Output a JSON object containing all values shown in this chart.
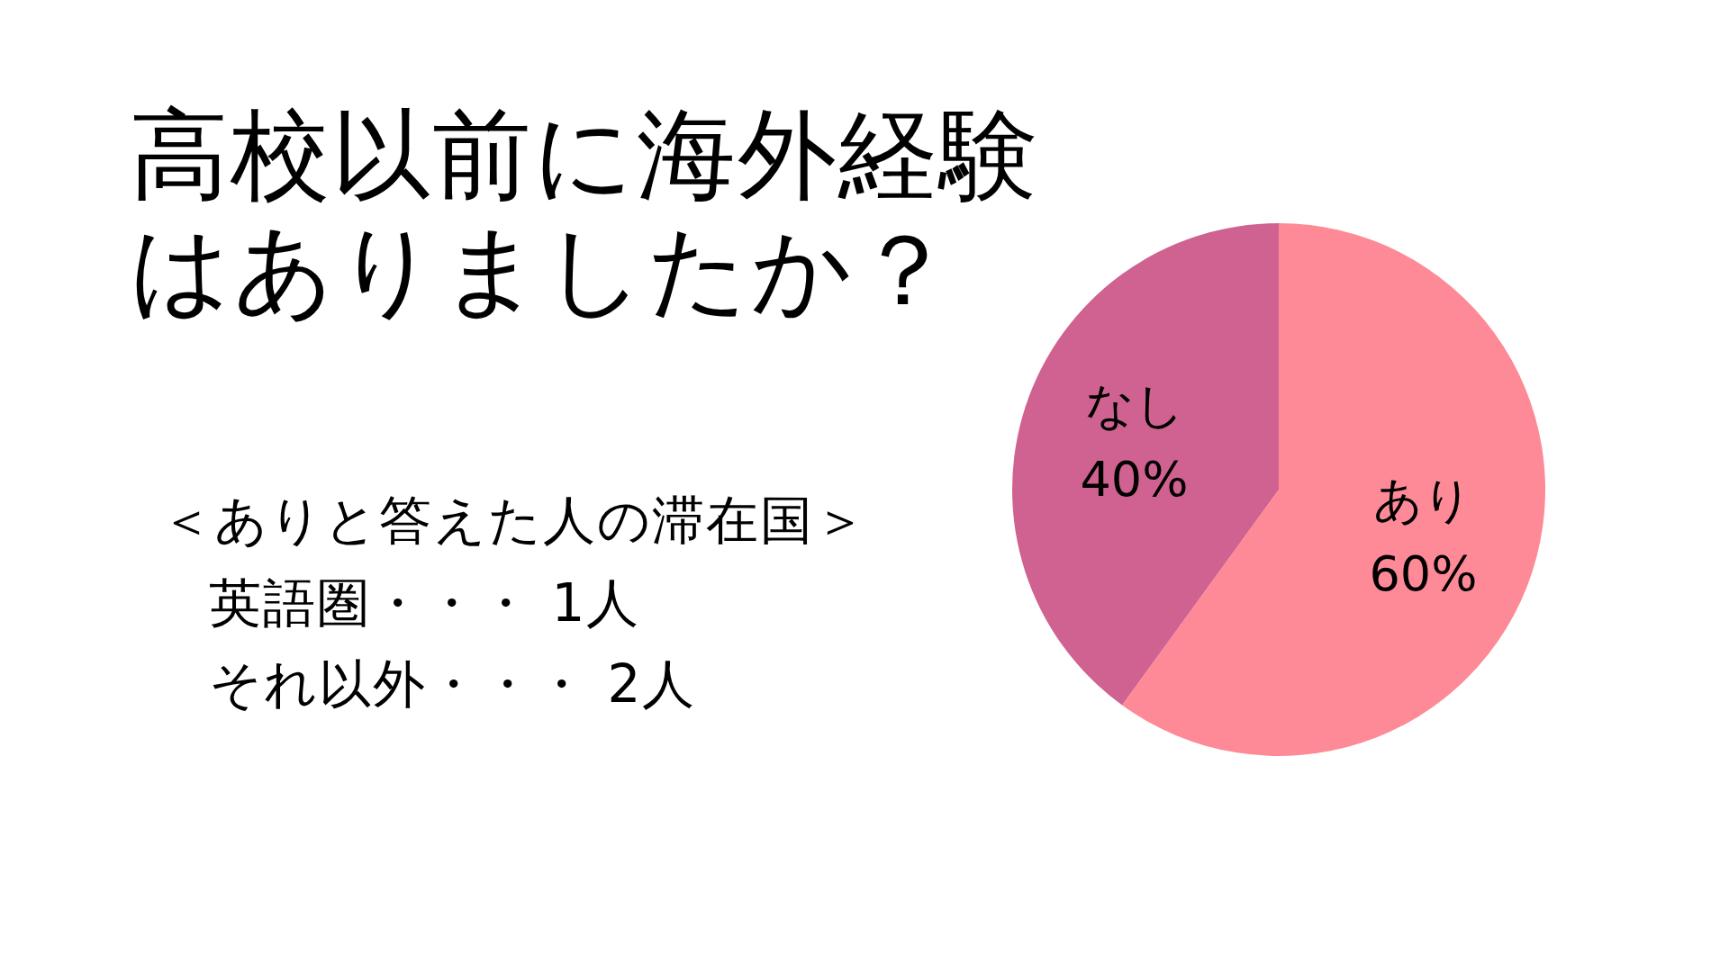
{
  "chart_data": {
    "type": "pie",
    "title": "高校以前に海外経験はありましたか？",
    "categories": [
      "あり",
      "なし"
    ],
    "values": [
      60,
      40
    ],
    "colors": [
      "#fe8a97",
      "#cf6290"
    ],
    "value_labels": [
      "60%",
      "40%"
    ],
    "annotations": [
      "＜ありと答えた人の滞在国＞",
      "英語圏・・・ 1人",
      "それ以外・・・ 2人"
    ]
  }
}
